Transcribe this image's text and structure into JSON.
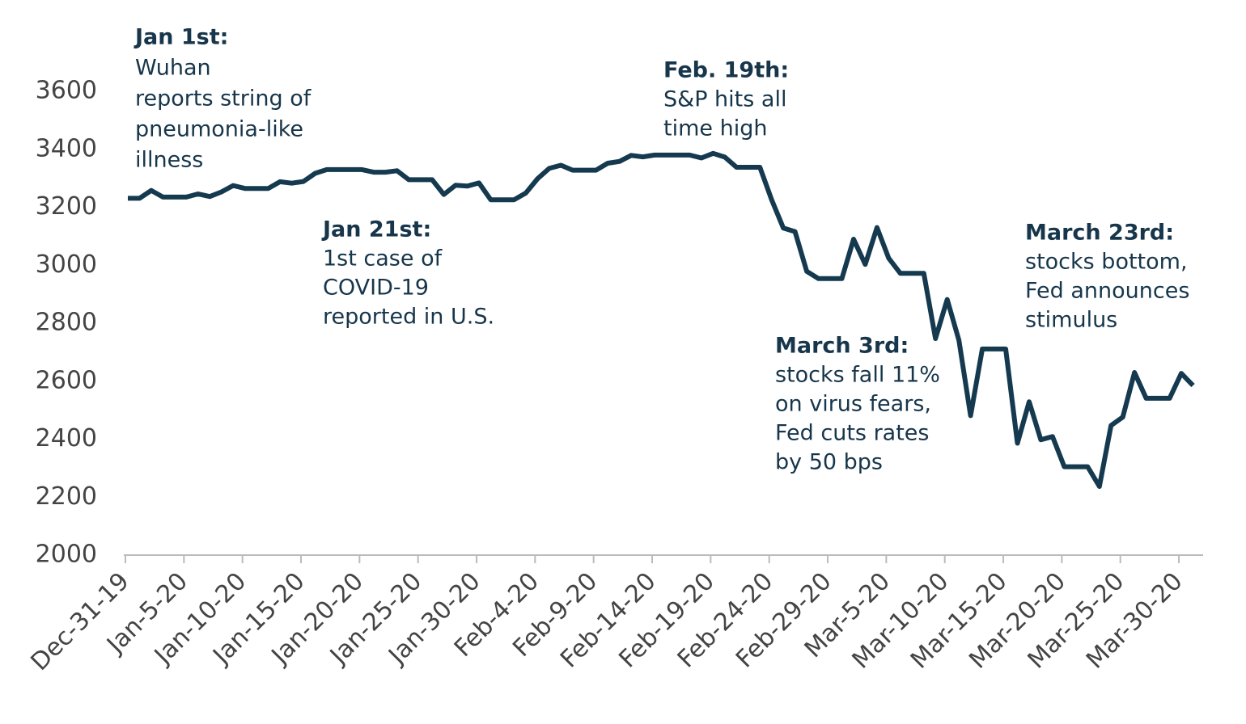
{
  "chart_data": {
    "type": "line",
    "categories": [
      "Dec-31-19",
      null,
      null,
      null,
      null,
      "Jan-5-20",
      null,
      null,
      null,
      null,
      "Jan-10-20",
      null,
      null,
      null,
      null,
      "Jan-15-20",
      null,
      null,
      null,
      null,
      "Jan-20-20",
      null,
      null,
      null,
      null,
      "Jan-25-20",
      null,
      null,
      null,
      null,
      "Jan-30-20",
      null,
      null,
      null,
      null,
      "Feb-4-20",
      null,
      null,
      null,
      null,
      "Feb-9-20",
      null,
      null,
      null,
      null,
      "Feb-14-20",
      null,
      null,
      null,
      null,
      "Feb-19-20",
      null,
      null,
      null,
      null,
      "Feb-24-20",
      null,
      null,
      null,
      null,
      "Feb-29-20",
      null,
      null,
      null,
      null,
      "Mar-5-20",
      null,
      null,
      null,
      null,
      "Mar-10-20",
      null,
      null,
      null,
      null,
      "Mar-15-20",
      null,
      null,
      null,
      null,
      "Mar-20-20",
      null,
      null,
      null,
      null,
      "Mar-25-20",
      null,
      null,
      null,
      null,
      "Mar-30-20",
      null
    ],
    "values": [
      3231,
      3231,
      3258,
      3235,
      3235,
      3235,
      3246,
      3237,
      3253,
      3275,
      3265,
      3265,
      3265,
      3288,
      3283,
      3289,
      3317,
      3330,
      3330,
      3330,
      3330,
      3321,
      3321,
      3326,
      3295,
      3295,
      3295,
      3244,
      3276,
      3273,
      3284,
      3226,
      3226,
      3226,
      3249,
      3298,
      3334,
      3345,
      3328,
      3328,
      3328,
      3352,
      3358,
      3379,
      3374,
      3380,
      3380,
      3380,
      3380,
      3370,
      3386,
      3373,
      3338,
      3338,
      3338,
      3226,
      3128,
      3116,
      2979,
      2954,
      2954,
      2954,
      3090,
      3003,
      3130,
      3024,
      2972,
      2972,
      2972,
      2747,
      2882,
      2741,
      2481,
      2711,
      2711,
      2711,
      2386,
      2529,
      2398,
      2409,
      2305,
      2305,
      2305,
      2237,
      2447,
      2476,
      2630,
      2541,
      2541,
      2541,
      2627,
      2585
    ],
    "color": "#153a4f",
    "ylim": [
      2000,
      3600
    ],
    "yticks": [
      2000,
      2200,
      2400,
      2600,
      2800,
      3000,
      3200,
      3400,
      3600
    ],
    "annotations": [
      {
        "title": "Jan 1st:",
        "lines": [
          "Wuhan",
          "reports string of",
          "pneumonia-like",
          "illness"
        ]
      },
      {
        "title": "Jan 21st:",
        "lines": [
          "1st case of",
          "COVID-19",
          "reported in U.S."
        ]
      },
      {
        "title": "Feb. 19th:",
        "lines": [
          "S&P hits all",
          "time high"
        ]
      },
      {
        "title": "March 3rd:",
        "lines": [
          "stocks fall 11%",
          "on virus fears,",
          "Fed cuts rates",
          "by 50 bps"
        ]
      },
      {
        "title": "March 23rd:",
        "lines": [
          "stocks bottom,",
          "Fed announces",
          "stimulus"
        ]
      }
    ]
  }
}
